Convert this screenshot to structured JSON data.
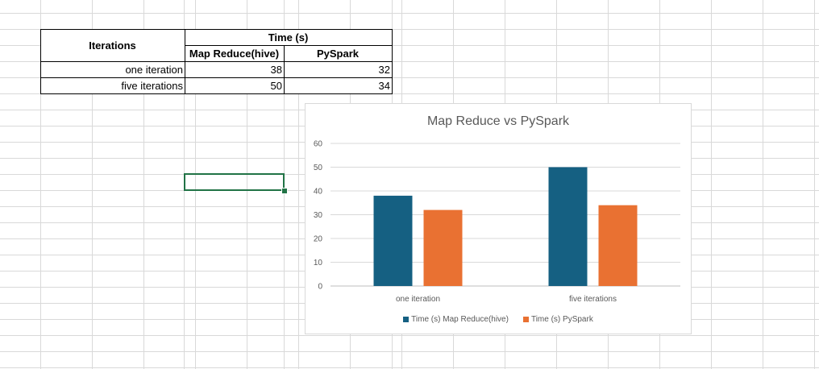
{
  "table": {
    "header_iterations": "Iterations",
    "header_time": "Time (s)",
    "col_mapreduce": "Map Reduce(hive)",
    "col_pyspark": "PySpark",
    "rows": [
      {
        "label": "one iteration",
        "mapreduce": "38",
        "pyspark": "32"
      },
      {
        "label": "five iterations",
        "mapreduce": "50",
        "pyspark": "34"
      }
    ]
  },
  "chart_data": {
    "type": "bar",
    "title": "Map Reduce vs PySpark",
    "categories": [
      "one iteration",
      "five iterations"
    ],
    "series": [
      {
        "name": "Time (s) Map Reduce(hive)",
        "values": [
          38,
          50
        ],
        "color": "#156082"
      },
      {
        "name": "Time (s) PySpark",
        "values": [
          32,
          34
        ],
        "color": "#E97132"
      }
    ],
    "ylim": [
      0,
      60
    ],
    "yticks": [
      "0",
      "10",
      "20",
      "30",
      "40",
      "50",
      "60"
    ],
    "grid": true,
    "legend": "bottom"
  }
}
